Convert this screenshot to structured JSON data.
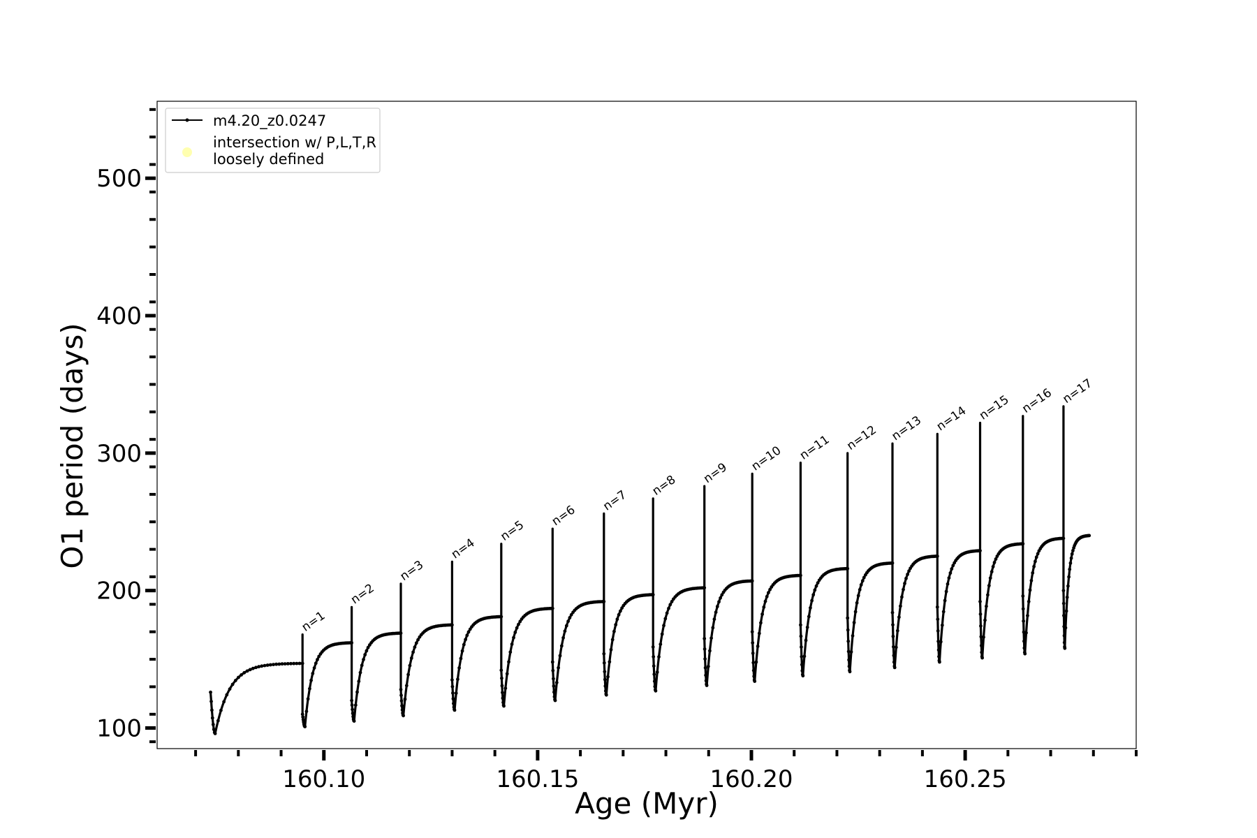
{
  "chart_data": {
    "type": "line",
    "xlabel": "Age (Myr)",
    "ylabel": "O1 period (days)",
    "xlim": [
      160.061,
      160.29
    ],
    "ylim": [
      85,
      556
    ],
    "x_ticks": [
      160.1,
      160.15,
      160.2,
      160.25
    ],
    "x_tick_labels": [
      "160.10",
      "160.15",
      "160.20",
      "160.25"
    ],
    "x_minor_step": 0.01,
    "y_ticks": [
      100,
      200,
      300,
      400,
      500
    ],
    "y_tick_labels": [
      "100",
      "200",
      "300",
      "400",
      "500"
    ],
    "y_minor_step": 20,
    "grid": false,
    "legend": {
      "placement": "top-left",
      "entries": [
        {
          "label": "m4.20_z0.0247",
          "marker": "line-dot",
          "color": "#000000"
        },
        {
          "label_lines": [
            "intersection w/ P,L,T,R",
            "loosely defined"
          ],
          "marker": "circle",
          "color": "#ffffb0"
        }
      ]
    },
    "series": [
      {
        "name": "m4.20_z0.0247",
        "color": "#000000",
        "start": {
          "x": 160.0735,
          "y": 126
        },
        "first_min": 96,
        "first_max": 147,
        "pulses": [
          {
            "n": "n=1",
            "x": 160.095,
            "peak": 168,
            "drop": 110,
            "min": 101,
            "max": 162
          },
          {
            "n": "n=2",
            "x": 160.1065,
            "peak": 188,
            "drop": 120,
            "min": 105,
            "max": 169
          },
          {
            "n": "n=3",
            "x": 160.118,
            "peak": 205,
            "drop": 128,
            "min": 109,
            "max": 175
          },
          {
            "n": "n=4",
            "x": 160.13,
            "peak": 221,
            "drop": 135,
            "min": 113,
            "max": 181
          },
          {
            "n": "n=5",
            "x": 160.1415,
            "peak": 234,
            "drop": 142,
            "min": 116,
            "max": 187
          },
          {
            "n": "n=6",
            "x": 160.1535,
            "peak": 245,
            "drop": 148,
            "min": 120,
            "max": 192
          },
          {
            "n": "n=7",
            "x": 160.1655,
            "peak": 256,
            "drop": 154,
            "min": 124,
            "max": 197
          },
          {
            "n": "n=8",
            "x": 160.177,
            "peak": 267,
            "drop": 159,
            "min": 127,
            "max": 202
          },
          {
            "n": "n=9",
            "x": 160.189,
            "peak": 276,
            "drop": 165,
            "min": 131,
            "max": 207
          },
          {
            "n": "n=10",
            "x": 160.2002,
            "peak": 285,
            "drop": 170,
            "min": 134,
            "max": 211
          },
          {
            "n": "n=11",
            "x": 160.2115,
            "peak": 293,
            "drop": 175,
            "min": 138,
            "max": 216
          },
          {
            "n": "n=12",
            "x": 160.2225,
            "peak": 300,
            "drop": 180,
            "min": 141,
            "max": 220
          },
          {
            "n": "n=13",
            "x": 160.233,
            "peak": 307,
            "drop": 184,
            "min": 144,
            "max": 225
          },
          {
            "n": "n=14",
            "x": 160.2435,
            "peak": 314,
            "drop": 188,
            "min": 148,
            "max": 229
          },
          {
            "n": "n=15",
            "x": 160.2535,
            "peak": 322,
            "drop": 192,
            "min": 151,
            "max": 234
          },
          {
            "n": "n=16",
            "x": 160.2635,
            "peak": 327,
            "drop": 196,
            "min": 154,
            "max": 238
          },
          {
            "n": "n=17",
            "x": 160.273,
            "peak": 334,
            "drop": 200,
            "min": 158,
            "max": 240
          }
        ],
        "end_x": 160.279
      }
    ]
  }
}
